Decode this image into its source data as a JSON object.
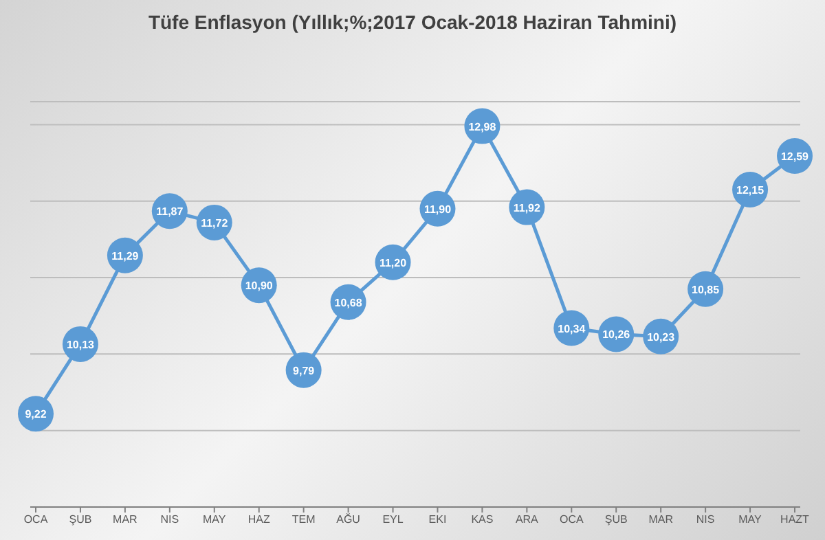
{
  "chart_data": {
    "type": "line",
    "title": "Tüfe Enflasyon (Yıllık;%;2017 Ocak-2018 Haziran Tahmini)",
    "categories": [
      "OCA",
      "ŞUB",
      "MAR",
      "NIS",
      "MAY",
      "HAZ",
      "TEM",
      "AĞU",
      "EYL",
      "EKI",
      "KAS",
      "ARA",
      "OCA",
      "ŞUB",
      "MAR",
      "NIS",
      "MAY",
      "HAZT"
    ],
    "series": [
      {
        "color": "#5b9bd5",
        "values": [
          9.22,
          10.13,
          11.29,
          11.87,
          11.72,
          10.9,
          9.79,
          10.68,
          11.2,
          11.9,
          12.98,
          11.92,
          10.34,
          10.26,
          10.23,
          10.85,
          12.15,
          12.59
        ],
        "value_labels": [
          "9,22",
          "10,13",
          "11,29",
          "11,87",
          "11,72",
          "10,90",
          "9,79",
          "10,68",
          "11,20",
          "11,90",
          "12,98",
          "11,92",
          "10,34",
          "10,26",
          "10,23",
          "10,85",
          "12,15",
          "12,59"
        ]
      }
    ],
    "ylim": [
      8,
      13.3
    ],
    "yticks": [
      {
        "value": 8,
        "label": null
      },
      {
        "value": 9,
        "label": null
      },
      {
        "value": 10,
        "label": null
      },
      {
        "value": 11,
        "label": null
      },
      {
        "value": 12,
        "label": null
      },
      {
        "value": 13,
        "label": null
      }
    ],
    "tick_labels": "x",
    "grid": "y",
    "marker": "circle",
    "line_style": "solid",
    "legend": false
  }
}
